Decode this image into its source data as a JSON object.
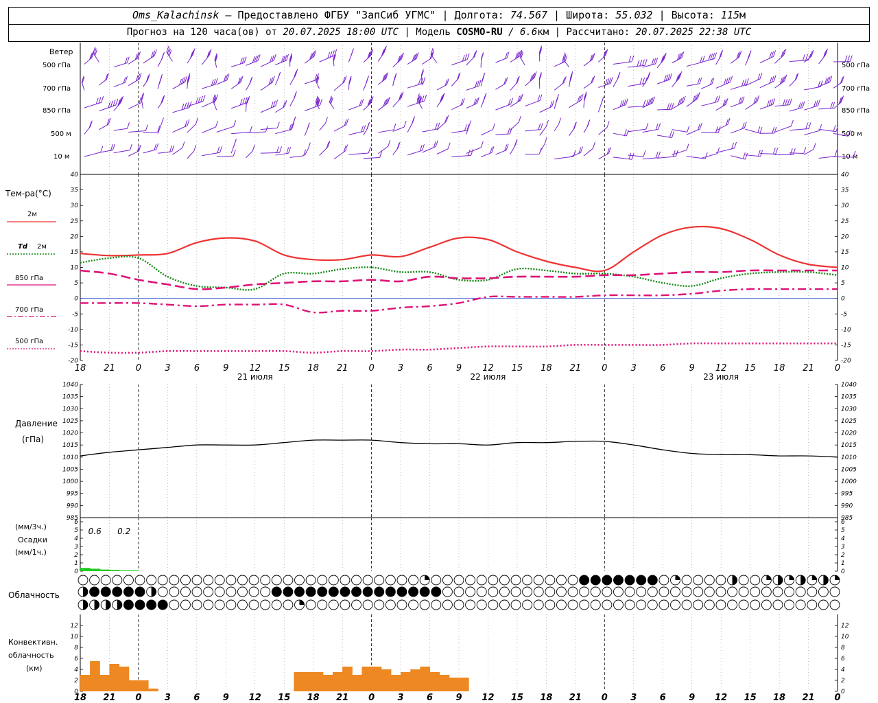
{
  "header": {
    "station": "Oms_Kalachinsk",
    "provider": " — Предоставлено ФГБУ \"ЗапСиб УГМС\" | Долгота: ",
    "lon": "74.567",
    "lat_label": " | Широта: ",
    "lat": "55.032",
    "alt_label": " | Высота: ",
    "alt": "115",
    "alt_unit": "м",
    "forecast_prefix": "Прогноз на 120 часа(ов) от ",
    "forecast_from": "20.07.2025 18:00 UTC",
    "model_label": " | Модель ",
    "model": "COSMO-RU",
    "model_res": " / 6.6",
    "model_res_unit": "км",
    "calc_label": " | Рассчитано: ",
    "calc_time": "20.07.2025 22:38 UTC"
  },
  "labels": {
    "wind": "Ветер",
    "wind_levels": [
      "500 гПа",
      "700 гПа",
      "850 гПа",
      "500 м",
      "10  м"
    ],
    "temp_title": "Тем-ра(°C)",
    "t2m": "2м",
    "td_sym": "Td",
    "td_lvl": "2м",
    "t850": "850 гПа",
    "t700": "700 гПа",
    "t500": "500 гПа",
    "pressure_title": "Давление",
    "pressure_unit": "(гПа)",
    "precip_unit3": "(мм/3ч.)",
    "precip_title": "Осадки",
    "precip_unit1": "(мм/1ч.)",
    "cloud_title": "Облачность",
    "conv_title1": "Конвективн.",
    "conv_title2": "облачность",
    "conv_unit": "(км)"
  },
  "time_axis": {
    "hour_labels": [
      "18",
      "21",
      "0",
      "3",
      "6",
      "9",
      "12",
      "15",
      "18",
      "21",
      "0",
      "3",
      "6",
      "9",
      "12",
      "15",
      "18",
      "21",
      "0",
      "3",
      "6",
      "9",
      "12",
      "15",
      "18",
      "21",
      "0"
    ],
    "day_labels": [
      "21 июля",
      "22 июля",
      "23 июля"
    ]
  },
  "colors": {
    "t2m": "#ee3333",
    "td2m": "#118811",
    "t850": "#dd1177",
    "t700": "#dd1177",
    "t500": "#dd1177",
    "wind": "#7722cc",
    "precip": "#22cc22",
    "conv": "#ee8822"
  },
  "chart_data": [
    {
      "type": "line",
      "panel": "temperature",
      "x": [
        18,
        21,
        0,
        3,
        6,
        9,
        12,
        15,
        18,
        21,
        0,
        3,
        6,
        9,
        12,
        15,
        18,
        21,
        0,
        3,
        6,
        9,
        12,
        15,
        18,
        21,
        0
      ],
      "ylim": [
        -20,
        40
      ],
      "yticks": [
        -20,
        -15,
        -10,
        -5,
        0,
        5,
        10,
        15,
        20,
        25,
        30,
        35,
        40
      ],
      "series": [
        {
          "name": "2м",
          "values": [
            14.5,
            13.8,
            14,
            14.5,
            18,
            19.5,
            18.5,
            14,
            12.5,
            12.5,
            14,
            13.5,
            16.5,
            19.5,
            19,
            15,
            12,
            10,
            9,
            15,
            20.5,
            23,
            22.5,
            19,
            14,
            11,
            10
          ]
        },
        {
          "name": "Td 2м",
          "values": [
            11.5,
            13,
            13,
            7,
            4,
            3.5,
            3,
            8,
            8,
            9.5,
            10,
            8.5,
            8.5,
            6,
            6,
            9.5,
            9,
            8,
            8,
            7,
            5,
            4,
            6.5,
            8,
            8.5,
            8.5,
            7.5
          ]
        },
        {
          "name": "850 гПа",
          "values": [
            9,
            8,
            6,
            4.5,
            3,
            3.5,
            4.5,
            5,
            5.5,
            5.5,
            6,
            5.5,
            7,
            6.5,
            6.5,
            7,
            7,
            7,
            7.5,
            7.5,
            8,
            8.5,
            8.5,
            9,
            9,
            9,
            9
          ]
        },
        {
          "name": "700 гПа",
          "values": [
            -1.5,
            -1.5,
            -1.5,
            -2,
            -2.5,
            -2,
            -2,
            -2,
            -4.5,
            -4,
            -4,
            -3,
            -2.5,
            -1.5,
            0.5,
            0.5,
            0.5,
            0.5,
            1,
            1,
            1,
            1.5,
            2.5,
            3,
            3,
            3,
            3
          ]
        },
        {
          "name": "500 гПа",
          "values": [
            -17,
            -17.5,
            -17.5,
            -17,
            -17,
            -17,
            -17,
            -17,
            -17.5,
            -17,
            -17,
            -16.5,
            -16.5,
            -16,
            -15.5,
            -15.5,
            -15.5,
            -15,
            -15,
            -15,
            -15,
            -14.5,
            -14.5,
            -14.5,
            -14.5,
            -14.5,
            -14.5
          ]
        }
      ]
    },
    {
      "type": "line",
      "panel": "pressure",
      "x": [
        18,
        21,
        0,
        3,
        6,
        9,
        12,
        15,
        18,
        21,
        0,
        3,
        6,
        9,
        12,
        15,
        18,
        21,
        0,
        3,
        6,
        9,
        12,
        15,
        18,
        21,
        0
      ],
      "ylim": [
        985,
        1040
      ],
      "yticks": [
        985,
        990,
        995,
        1000,
        1005,
        1010,
        1015,
        1020,
        1025,
        1030,
        1035,
        1040
      ],
      "series": [
        {
          "name": "Давление",
          "values": [
            1010.5,
            1012,
            1013,
            1014,
            1015,
            1015,
            1015,
            1016,
            1017,
            1017,
            1017,
            1016,
            1015.5,
            1015.5,
            1015,
            1016,
            1016,
            1016.5,
            1016.5,
            1015,
            1013,
            1011.5,
            1011,
            1011,
            1010.5,
            1010.5,
            1010
          ]
        }
      ]
    },
    {
      "type": "bar",
      "panel": "precipitation",
      "ylim": [
        0,
        6
      ],
      "yticks": [
        0,
        1,
        2,
        3,
        4,
        5,
        6
      ],
      "labels_3h": [
        "0.6",
        "0.2"
      ],
      "bars": [
        {
          "h": 18,
          "v": 0.4
        },
        {
          "h": 19,
          "v": 0.3
        },
        {
          "h": 20,
          "v": 0.2
        },
        {
          "h": 21,
          "v": 0.15
        },
        {
          "h": 22,
          "v": 0.1
        },
        {
          "h": 23,
          "v": 0.1
        }
      ]
    },
    {
      "type": "bar",
      "panel": "convective_clouds",
      "ylim": [
        0,
        14
      ],
      "yticks": [
        0,
        2,
        4,
        6,
        8,
        10,
        12
      ],
      "bars": [
        {
          "h": 18,
          "v": 3
        },
        {
          "h": 19,
          "v": 5.5
        },
        {
          "h": 20,
          "v": 3
        },
        {
          "h": 21,
          "v": 5
        },
        {
          "h": 22,
          "v": 4.5
        },
        {
          "h": 23,
          "v": 2
        },
        {
          "h": 24,
          "v": 2
        },
        {
          "h": 25,
          "v": 0.5
        },
        {
          "h": 40,
          "v": 3.5
        },
        {
          "h": 41,
          "v": 3.5
        },
        {
          "h": 42,
          "v": 3.5
        },
        {
          "h": 43,
          "v": 3
        },
        {
          "h": 44,
          "v": 3.5
        },
        {
          "h": 45,
          "v": 4.5
        },
        {
          "h": 46,
          "v": 3
        },
        {
          "h": 47,
          "v": 4.5
        },
        {
          "h": 48,
          "v": 4.5
        },
        {
          "h": 49,
          "v": 4
        },
        {
          "h": 50,
          "v": 3
        },
        {
          "h": 51,
          "v": 3.5
        },
        {
          "h": 52,
          "v": 4
        },
        {
          "h": 53,
          "v": 4.5
        },
        {
          "h": 54,
          "v": 3.5
        },
        {
          "h": 55,
          "v": 3
        },
        {
          "h": 56,
          "v": 2.5
        },
        {
          "h": 57,
          "v": 2.5
        }
      ]
    }
  ]
}
